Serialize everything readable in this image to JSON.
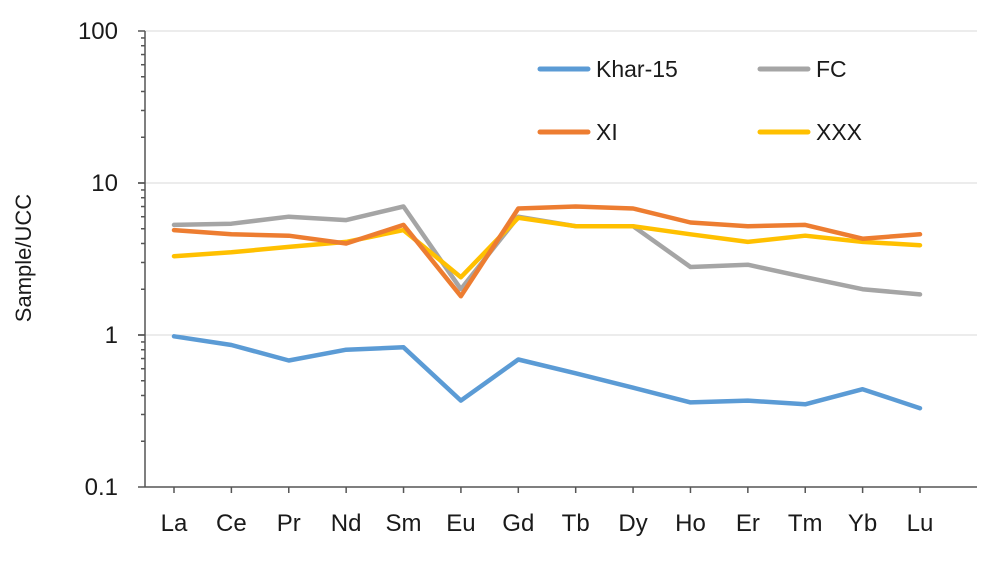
{
  "chart_data": {
    "type": "line",
    "ylabel": "Sample/UCC",
    "yscale": "log",
    "ylim": [
      0.1,
      100
    ],
    "yticks": [
      0.1,
      1,
      10,
      100
    ],
    "ytick_labels": [
      "0.1",
      "1",
      "10",
      "100"
    ],
    "grid": true,
    "legend_position": "top-right",
    "categories": [
      "La",
      "Ce",
      "Pr",
      "Nd",
      "Sm",
      "Eu",
      "Gd",
      "Tb",
      "Dy",
      "Ho",
      "Er",
      "Tm",
      "Yb",
      "Lu"
    ],
    "series": [
      {
        "name": "Khar-15",
        "color": "#5b9bd5",
        "values": [
          0.98,
          0.86,
          0.68,
          0.8,
          0.83,
          0.37,
          0.69,
          0.56,
          0.45,
          0.36,
          0.37,
          0.35,
          0.44,
          0.33
        ]
      },
      {
        "name": "FC",
        "color": "#a5a5a5",
        "values": [
          5.3,
          5.4,
          6.0,
          5.7,
          7.0,
          2.0,
          6.0,
          5.2,
          5.2,
          2.8,
          2.9,
          2.4,
          2.0,
          1.85
        ]
      },
      {
        "name": "XI",
        "color": "#ed7d31",
        "values": [
          4.9,
          4.6,
          4.5,
          4.0,
          5.3,
          1.8,
          6.8,
          7.0,
          6.8,
          5.5,
          5.2,
          5.3,
          4.3,
          4.6
        ]
      },
      {
        "name": "XXX",
        "color": "#ffc000",
        "values": [
          3.3,
          3.5,
          3.8,
          4.1,
          4.9,
          2.4,
          5.9,
          5.2,
          5.2,
          4.6,
          4.1,
          4.5,
          4.1,
          3.9
        ]
      }
    ]
  }
}
